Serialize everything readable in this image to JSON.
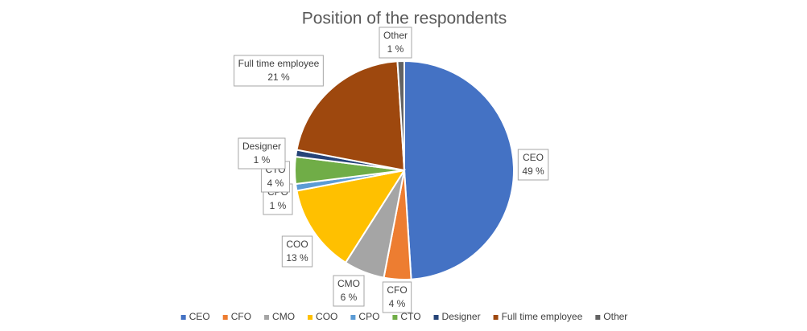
{
  "chart_data": {
    "type": "pie",
    "title": "Position of the respondents",
    "categories": [
      "CEO",
      "CFO",
      "CMO",
      "COO",
      "CPO",
      "CTO",
      "Designer",
      "Full time employee",
      "Other"
    ],
    "values": [
      49,
      4,
      6,
      13,
      1,
      4,
      1,
      21,
      1
    ],
    "value_labels": [
      "49 %",
      "4 %",
      "6 %",
      "13 %",
      "1 %",
      "4 %",
      "1 %",
      "21 %",
      "1 %"
    ],
    "colors": [
      "#4472c4",
      "#ed7d31",
      "#a5a5a5",
      "#ffc000",
      "#5b9bd5",
      "#70ad47",
      "#264478",
      "#9e480e",
      "#636363"
    ],
    "legend": "bottom"
  }
}
